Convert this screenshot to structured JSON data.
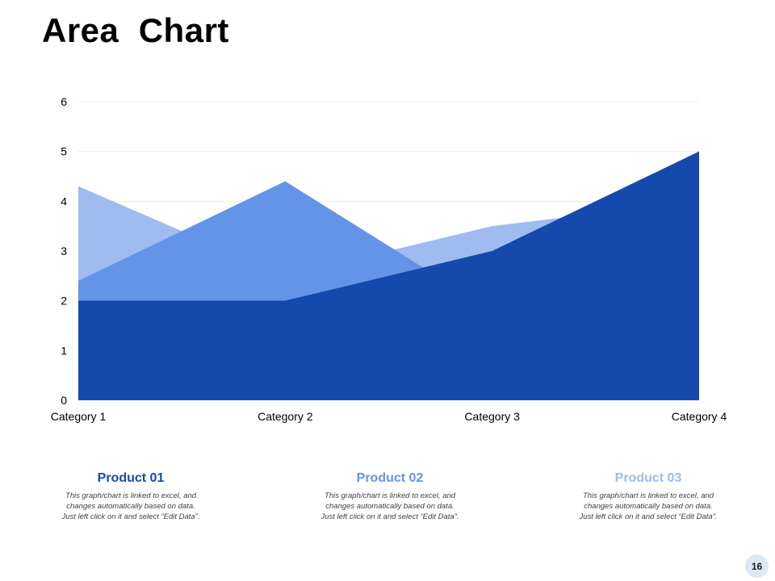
{
  "slide": {
    "title": "Area  Chart",
    "page_number": "16"
  },
  "legend": [
    {
      "name": "Product 01",
      "color": "#1549ab",
      "lines": [
        "This graph/chart is linked to excel, and",
        "changes automatically based on data.",
        "Just left click on it and select “Edit Data”."
      ]
    },
    {
      "name": "Product 02",
      "color": "#6394e8",
      "lines": [
        "This graph/chart is linked to excel, and",
        "changes automatically based on data.",
        "Just left click on it and select “Edit Data”."
      ]
    },
    {
      "name": "Product 03",
      "color": "#9fbbf0",
      "lines": [
        "This graph/chart is linked to excel, and",
        "changes automatically based on data.",
        "Just left click on it and select “Edit Data”."
      ]
    }
  ],
  "chart_data": {
    "type": "area",
    "categories": [
      "Category 1",
      "Category 2",
      "Category 3",
      "Category 4"
    ],
    "ylim": [
      0,
      6
    ],
    "yticks": [
      "0",
      "1",
      "2",
      "3",
      "4",
      "5",
      "6"
    ],
    "grid": true,
    "series": [
      {
        "name": "Product 03",
        "color": "#9fbbf0",
        "values": [
          4.3,
          2.5,
          3.5,
          4.0
        ]
      },
      {
        "name": "Product 02",
        "color": "#6394e8",
        "values": [
          2.4,
          4.4,
          1.8,
          2.8
        ]
      },
      {
        "name": "Product 01",
        "color": "#1549ab",
        "values": [
          2.0,
          2.0,
          3.0,
          5.0
        ]
      }
    ]
  }
}
